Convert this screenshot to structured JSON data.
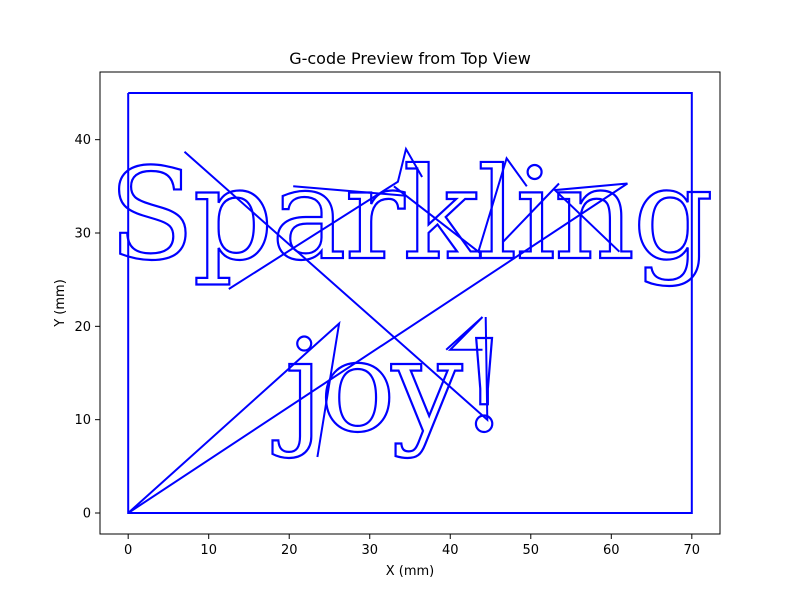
{
  "chart_data": {
    "type": "line",
    "title": "G-code Preview from Top View",
    "xlabel": "X (mm)",
    "ylabel": "Y (mm)",
    "xlim": [
      -3.5,
      73.5
    ],
    "ylim": [
      -2.25,
      47.25
    ],
    "xticks": [
      0,
      10,
      20,
      30,
      40,
      50,
      60,
      70
    ],
    "yticks": [
      0,
      10,
      20,
      30,
      40
    ],
    "grid": false,
    "line_color": "#0000ff",
    "engraved_text": {
      "line1": "Sparkling",
      "line2": "joy!"
    },
    "series": [
      {
        "values": "border",
        "x": [
          0,
          70,
          70,
          0,
          0
        ],
        "y": [
          45,
          45,
          0,
          0,
          45
        ]
      },
      {
        "values": "travel-1",
        "x": [
          0,
          26.2,
          23.5
        ],
        "y": [
          0,
          20.3,
          6
        ]
      },
      {
        "values": "travel-2",
        "x": [
          0,
          62,
          53,
          61
        ],
        "y": [
          0,
          35.3,
          34.6,
          28
        ]
      },
      {
        "values": "travel-3",
        "x": [
          7,
          44.6,
          44.4
        ],
        "y": [
          38.7,
          10,
          21
        ]
      },
      {
        "values": "travel-4",
        "x": [
          12.5,
          33.5,
          34.5,
          36.5
        ],
        "y": [
          24,
          35.5,
          39,
          36
        ]
      },
      {
        "values": "travel-5",
        "x": [
          33,
          43.5,
          47,
          49.5
        ],
        "y": [
          35,
          28,
          38,
          35
        ]
      },
      {
        "values": "travel-6",
        "x": [
          20.5,
          34.5
        ],
        "y": [
          35,
          34
        ]
      },
      {
        "values": "travel-7",
        "x": [
          39.5,
          44,
          40,
          44
        ],
        "y": [
          17.5,
          21,
          17.5,
          17.5
        ]
      },
      {
        "values": "travel-8",
        "x": [
          46.5,
          53.5
        ],
        "y": [
          29,
          35.3
        ]
      }
    ]
  }
}
